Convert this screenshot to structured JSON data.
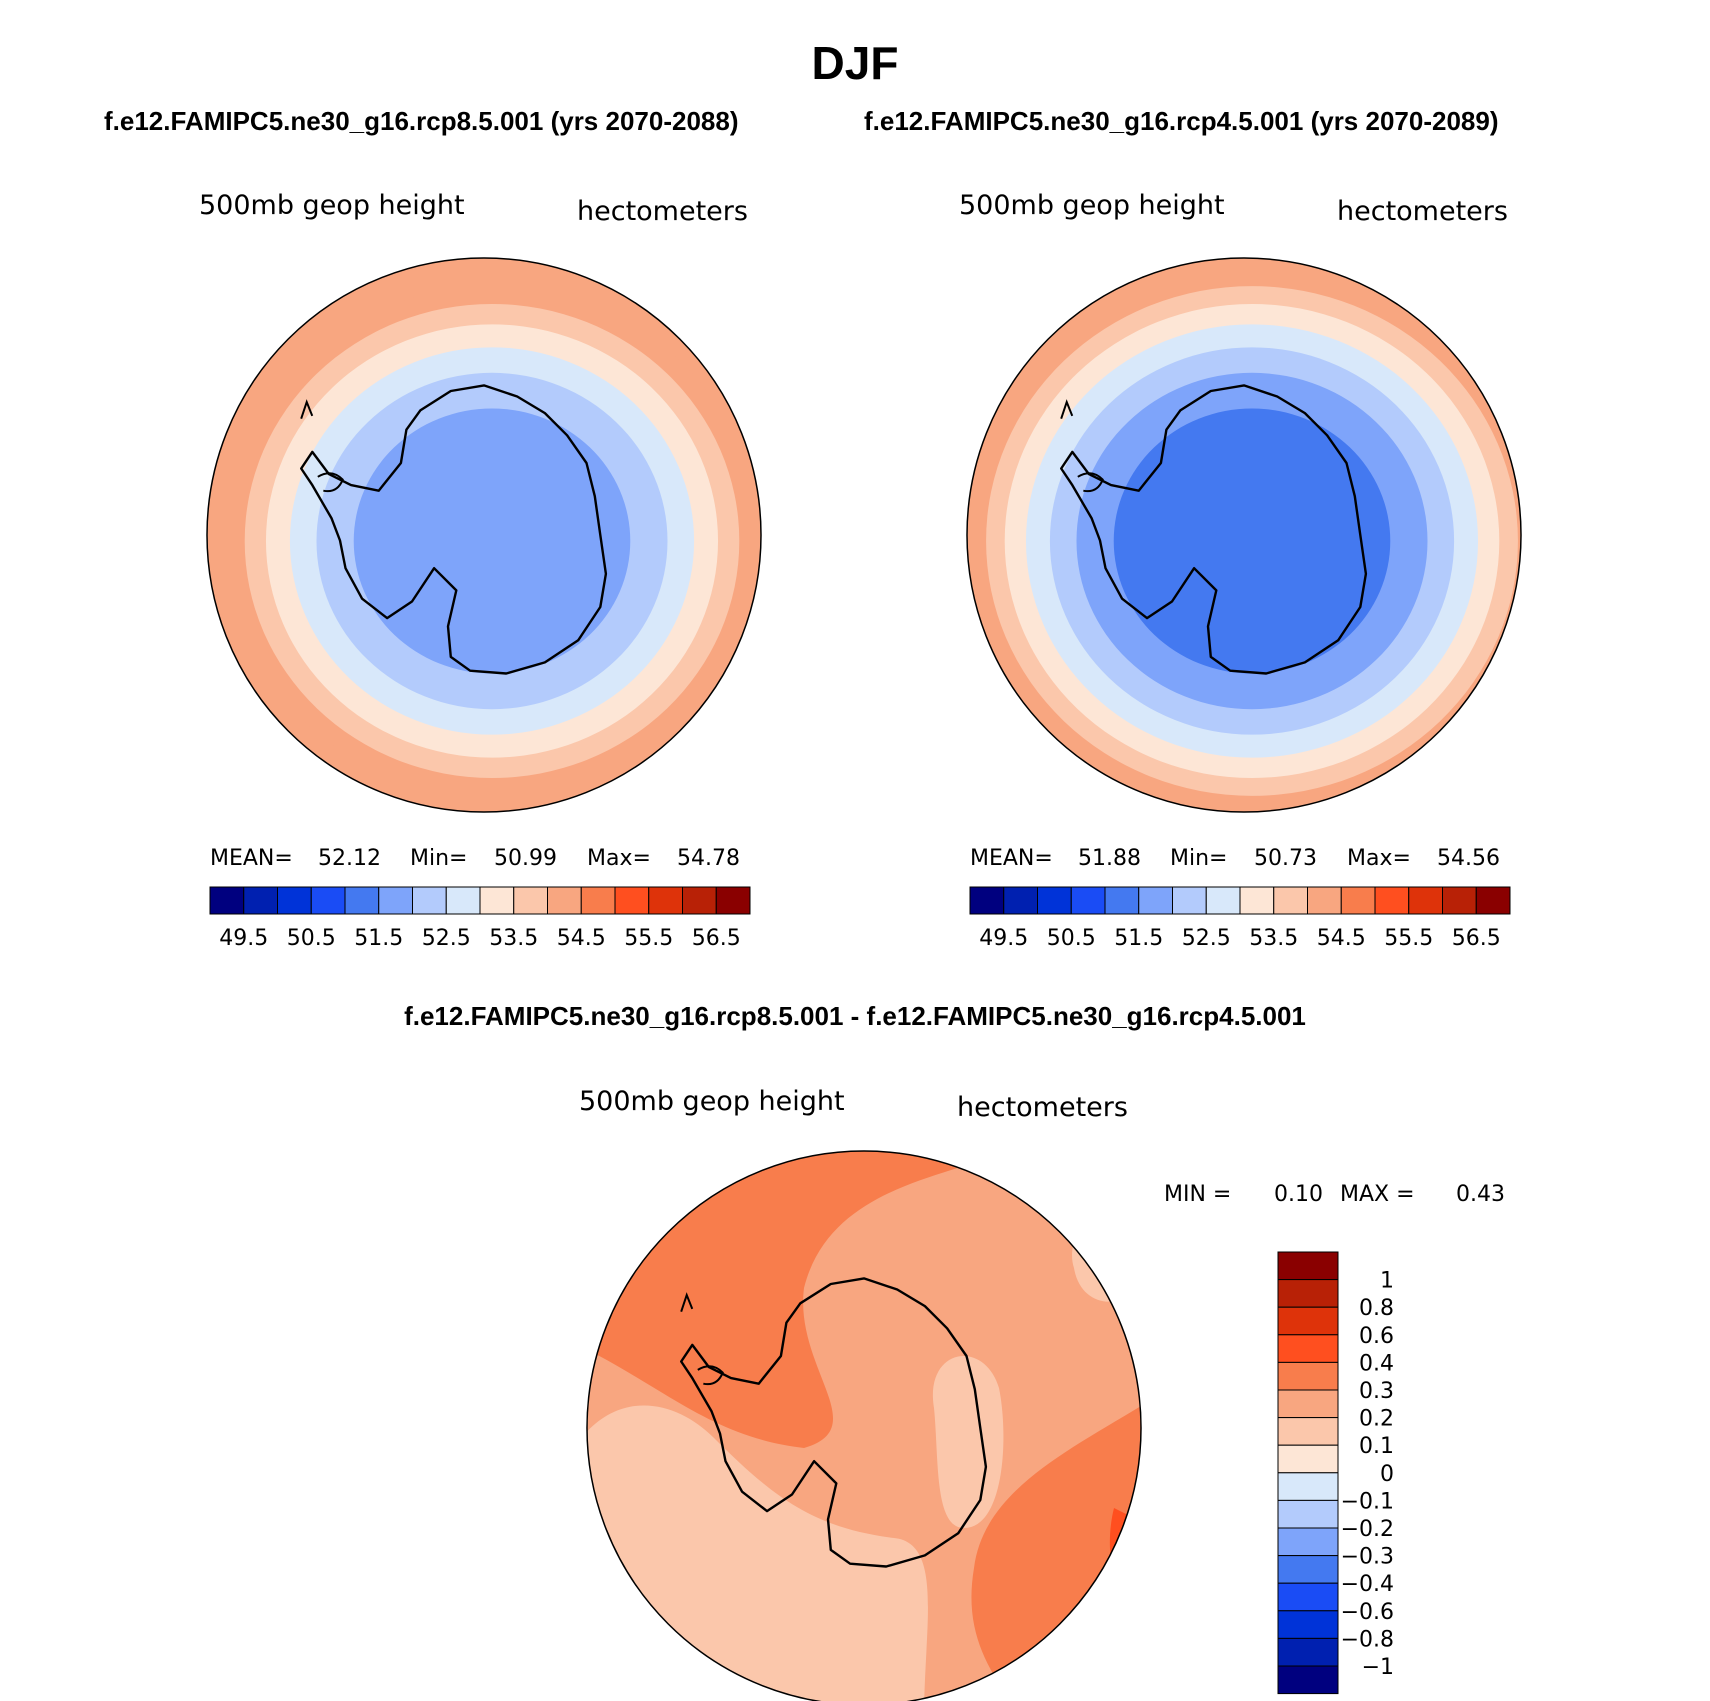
{
  "title": "DJF",
  "panels": [
    {
      "case_title": "f.e12.FAMIPC5.ne30_g16.rcp8.5.001 (yrs 2070-2088)",
      "variable": "500mb geop height",
      "units": "hectometers",
      "stats": {
        "mean_label": "MEAN=",
        "mean": "52.12",
        "min_label": "Min=",
        "min": "50.99",
        "max_label": "Max=",
        "max": "54.78"
      },
      "colorbar_ticks": [
        "49.5",
        "50.5",
        "51.5",
        "52.5",
        "53.5",
        "54.5",
        "55.5",
        "56.5"
      ],
      "field_levels": [
        10,
        10,
        9,
        8,
        7,
        6,
        5
      ]
    },
    {
      "case_title": "f.e12.FAMIPC5.ne30_g16.rcp4.5.001 (yrs 2070-2089)",
      "variable": "500mb geop height",
      "units": "hectometers",
      "stats": {
        "mean_label": "MEAN=",
        "mean": "51.88",
        "min_label": "Min=",
        "min": "50.73",
        "max_label": "Max=",
        "max": "54.56"
      },
      "colorbar_ticks": [
        "49.5",
        "50.5",
        "51.5",
        "52.5",
        "53.5",
        "54.5",
        "55.5",
        "56.5"
      ],
      "field_levels": [
        10,
        9,
        8,
        7,
        6,
        5,
        4
      ]
    }
  ],
  "diff_panel": {
    "title": "f.e12.FAMIPC5.ne30_g16.rcp8.5.001 - f.e12.FAMIPC5.ne30_g16.rcp4.5.001",
    "variable": "500mb geop height",
    "units": "hectometers",
    "min_label": "MIN =",
    "min": "0.10",
    "max_label": "MAX =",
    "max": "0.43",
    "colorbar_labels": [
      "1",
      "0.8",
      "0.6",
      "0.4",
      "0.3",
      "0.2",
      "0.1",
      "0",
      "−0.1",
      "−0.2",
      "−0.3",
      "−0.4",
      "−0.6",
      "−0.8",
      "−1"
    ]
  },
  "colors": {
    "palette": [
      "#00007f",
      "#0020b0",
      "#0033d8",
      "#1a4cf5",
      "#4479f0",
      "#7ea4fa",
      "#b3cbfc",
      "#d8e8fa",
      "#fde6d6",
      "#fbc7ab",
      "#f8a680",
      "#f87d4c",
      "#ff4f1f",
      "#de330a",
      "#b82106",
      "#8a0000"
    ],
    "coast": "#000000"
  }
}
